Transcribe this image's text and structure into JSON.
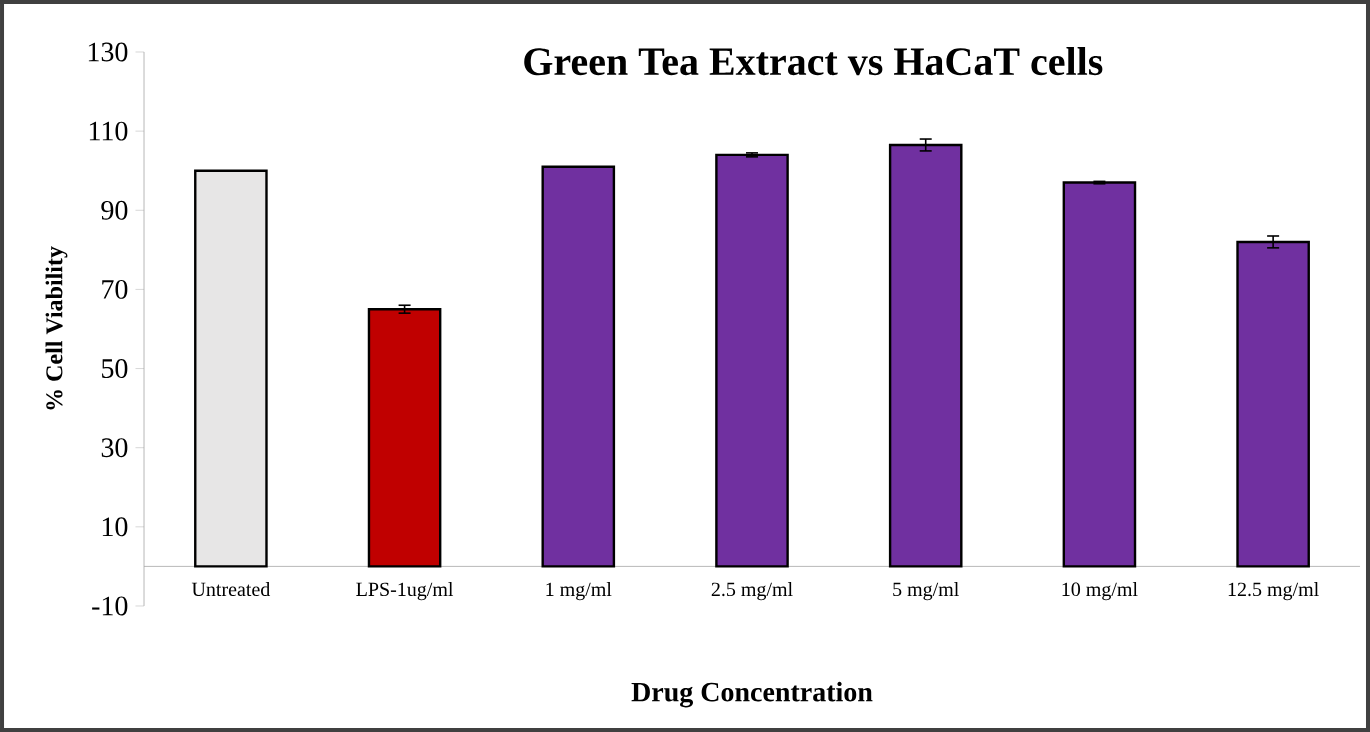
{
  "chart_data": {
    "type": "bar",
    "title": "Green Tea Extract vs HaCaT cells",
    "xlabel": "Drug Concentration",
    "ylabel": "%  Cell Viability",
    "categories": [
      "Untreated",
      "LPS-1ug/ml",
      "1 mg/ml",
      "2.5 mg/ml",
      "5 mg/ml",
      "10 mg/ml",
      "12.5 mg/ml"
    ],
    "values": [
      100,
      65,
      101,
      104,
      106.5,
      97,
      82
    ],
    "colors": [
      "#e7e6e6",
      "#c00000",
      "#7030a0",
      "#7030a0",
      "#7030a0",
      "#7030a0",
      "#7030a0"
    ],
    "errors": [
      null,
      1,
      null,
      0.5,
      1.5,
      0.3,
      1.5
    ],
    "ylim": [
      -10,
      130
    ],
    "yticks": [
      -10,
      10,
      30,
      50,
      70,
      90,
      110,
      130
    ]
  }
}
